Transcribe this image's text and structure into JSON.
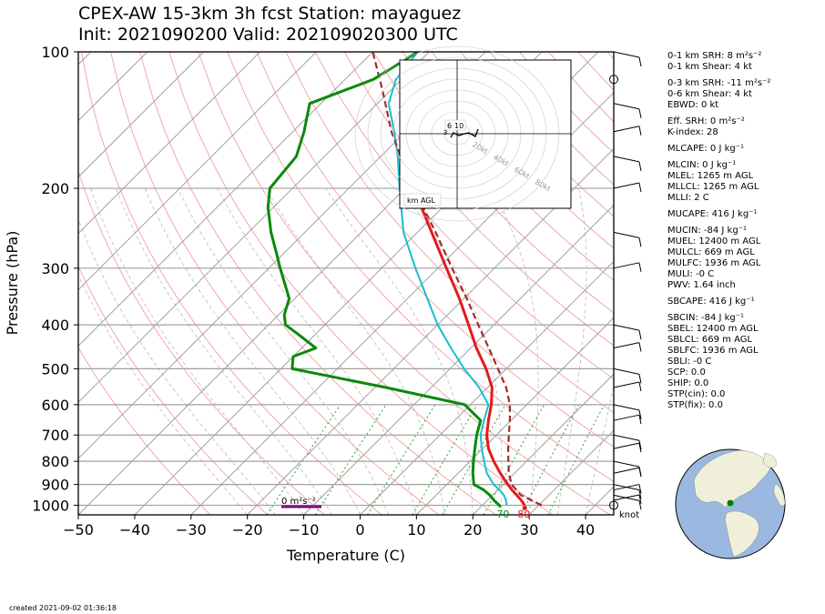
{
  "title_line1": "CPEX-AW 15-3km  3h fcst  Station: mayaguez",
  "title_line2": "Init: 2021090200  Valid: 202109020300 UTC",
  "created": "created 2021-09-02 01:36:18",
  "colors": {
    "temperature": "#e31a1c",
    "dewpoint": "#0a8a0a",
    "wetbulb": "#17becf",
    "parcel": "#a52a2a",
    "isotherm": "#a0a0a0",
    "dry_adiabat": "#f4a7a7",
    "mixing_ratio": "#2ca02c",
    "globe_ocean": "#9bb8e0",
    "globe_land": "#f0efdc",
    "station_dot": "#008000",
    "srh_bar": "#800080"
  },
  "stats": [
    "0-1 km SRH: 8 m²s⁻²",
    "0-1 km Shear: 4 kt",
    "0-3 km SRH: -11 m²s⁻²",
    "0-6 km Shear: 4 kt",
    "EBWD: 0 kt",
    "Eff. SRH: 0 m²s⁻²",
    "K-index: 28",
    "MLCAPE: 0 J kg⁻¹",
    "MLCIN: 0 J kg⁻¹",
    "MLEL: 1265 m AGL",
    "MLLCL: 1265 m AGL",
    "MLLI: 2 C",
    "MUCAPE: 416 J kg⁻¹",
    "MUCIN: -84 J kg⁻¹",
    "MUEL: 12400 m AGL",
    "MULCL: 669 m AGL",
    "MULFC: 1936 m AGL",
    "MULI: -0 C",
    "PWV: 1.64 inch",
    "SBCAPE: 416 J kg⁻¹",
    "SBCIN: -84 J kg⁻¹",
    "SBEL: 12400 m AGL",
    "SBLCL: 669 m AGL",
    "SBLFC: 1936 m AGL",
    "SBLI: -0 C",
    "SCP: 0.0",
    "SHIP: 0.0",
    "STP(cin): 0.0",
    "STP(fix): 0.0"
  ],
  "hodograph": {
    "rings": [
      "20kt",
      "40kt",
      "60kt",
      "80kt"
    ],
    "height_labels": [
      "6",
      "10",
      "3"
    ],
    "legend": "km AGL"
  },
  "srh_label": "0 m²s⁻²",
  "knot_label": "knot",
  "chart_data": {
    "type": "line",
    "xlabel": "Temperature (C)",
    "ylabel": "Pressure (hPa)",
    "xlim": [
      -50,
      45
    ],
    "ylim": [
      1050,
      100
    ],
    "y_scale": "log",
    "skew_degrees": 45,
    "x_ticks": [
      -50,
      -40,
      -30,
      -20,
      -10,
      0,
      10,
      20,
      30,
      40
    ],
    "x_tick_labels": [
      "−50",
      "−40",
      "−30",
      "−20",
      "−10",
      "0",
      "10",
      "20",
      "30",
      "40"
    ],
    "y_ticks": [
      1000,
      900,
      800,
      700,
      600,
      500,
      400,
      300,
      200,
      100
    ],
    "surface_labels": {
      "dewpoint": "70",
      "temperature": "80"
    },
    "series": [
      {
        "key": "temperature",
        "pressure": [
          1000,
          975,
          950,
          925,
          900,
          850,
          800,
          750,
          700,
          650,
          600,
          550,
          500,
          450,
          400,
          350,
          300,
          250,
          200
        ],
        "values": [
          27.5,
          26.0,
          24.3,
          22.5,
          20.8,
          17.5,
          14.2,
          11.0,
          8.3,
          6.0,
          3.7,
          0.8,
          -3.6,
          -9.0,
          -14.5,
          -20.8,
          -28.5,
          -37.5,
          -48.5
        ]
      },
      {
        "key": "dewpoint",
        "pressure": [
          1010,
          1000,
          980,
          950,
          925,
          900,
          850,
          800,
          750,
          700,
          650,
          600,
          550,
          500,
          470,
          450,
          420,
          400,
          380,
          350,
          300,
          280,
          250,
          220,
          200,
          170,
          150,
          130,
          115,
          100
        ],
        "values": [
          23.5,
          23.0,
          21.5,
          19.5,
          17.5,
          14.8,
          12.6,
          10.6,
          8.6,
          6.5,
          4.6,
          -1.0,
          -18.0,
          -38.0,
          -40.0,
          -37.5,
          -43.0,
          -47.0,
          -49.0,
          -51.0,
          -58.0,
          -61.0,
          -66.0,
          -71.0,
          -74.0,
          -75.0,
          -78.0,
          -82.0,
          -75.0,
          -72.0
        ]
      },
      {
        "key": "wetbulb",
        "pressure": [
          1000,
          975,
          950,
          925,
          900,
          850,
          800,
          750,
          700,
          650,
          600,
          550,
          500,
          450,
          400,
          350,
          300,
          250,
          200,
          170,
          150,
          130,
          115,
          100
        ],
        "values": [
          24.3,
          23.3,
          22.0,
          20.3,
          18.3,
          15.1,
          12.5,
          9.8,
          7.2,
          5.2,
          3.2,
          -1.5,
          -7.5,
          -13.5,
          -20.0,
          -26.5,
          -34.0,
          -42.5,
          -51.0,
          -57.0,
          -62.0,
          -68.0,
          -71.0,
          -72.0
        ]
      },
      {
        "key": "parcel",
        "pressure": [
          1000,
          950,
          900,
          850,
          800,
          750,
          700,
          650,
          600,
          550,
          500,
          450,
          400,
          350,
          300,
          250,
          200,
          170,
          150,
          120,
          100
        ],
        "values": [
          30.5,
          25.0,
          21.5,
          19.0,
          16.8,
          14.5,
          12.2,
          9.8,
          7.0,
          3.3,
          -1.5,
          -6.8,
          -12.8,
          -19.5,
          -27.5,
          -36.8,
          -48.5,
          -56.5,
          -62.5,
          -72.0,
          -80.0
        ]
      }
    ],
    "winds": [
      {
        "p": 1000,
        "flag": "calm"
      },
      {
        "p": 975,
        "flag": "barb"
      },
      {
        "p": 950,
        "flag": "barb"
      },
      {
        "p": 925,
        "flag": "barb"
      },
      {
        "p": 900,
        "flag": "barb"
      },
      {
        "p": 850,
        "flag": "barb"
      },
      {
        "p": 800,
        "flag": "barb"
      },
      {
        "p": 750,
        "flag": "barb"
      },
      {
        "p": 700,
        "flag": "barb"
      },
      {
        "p": 650,
        "flag": "barb"
      },
      {
        "p": 600,
        "flag": "barb"
      },
      {
        "p": 550,
        "flag": "barb"
      },
      {
        "p": 500,
        "flag": "barb"
      },
      {
        "p": 450,
        "flag": "barb"
      },
      {
        "p": 400,
        "flag": "barb"
      },
      {
        "p": 300,
        "flag": "barb"
      },
      {
        "p": 250,
        "flag": "barb"
      },
      {
        "p": 200,
        "flag": "barb"
      },
      {
        "p": 170,
        "flag": "barb"
      },
      {
        "p": 150,
        "flag": "barb"
      },
      {
        "p": 130,
        "flag": "barb"
      },
      {
        "p": 115,
        "flag": "calm"
      },
      {
        "p": 100,
        "flag": "barb"
      }
    ]
  }
}
